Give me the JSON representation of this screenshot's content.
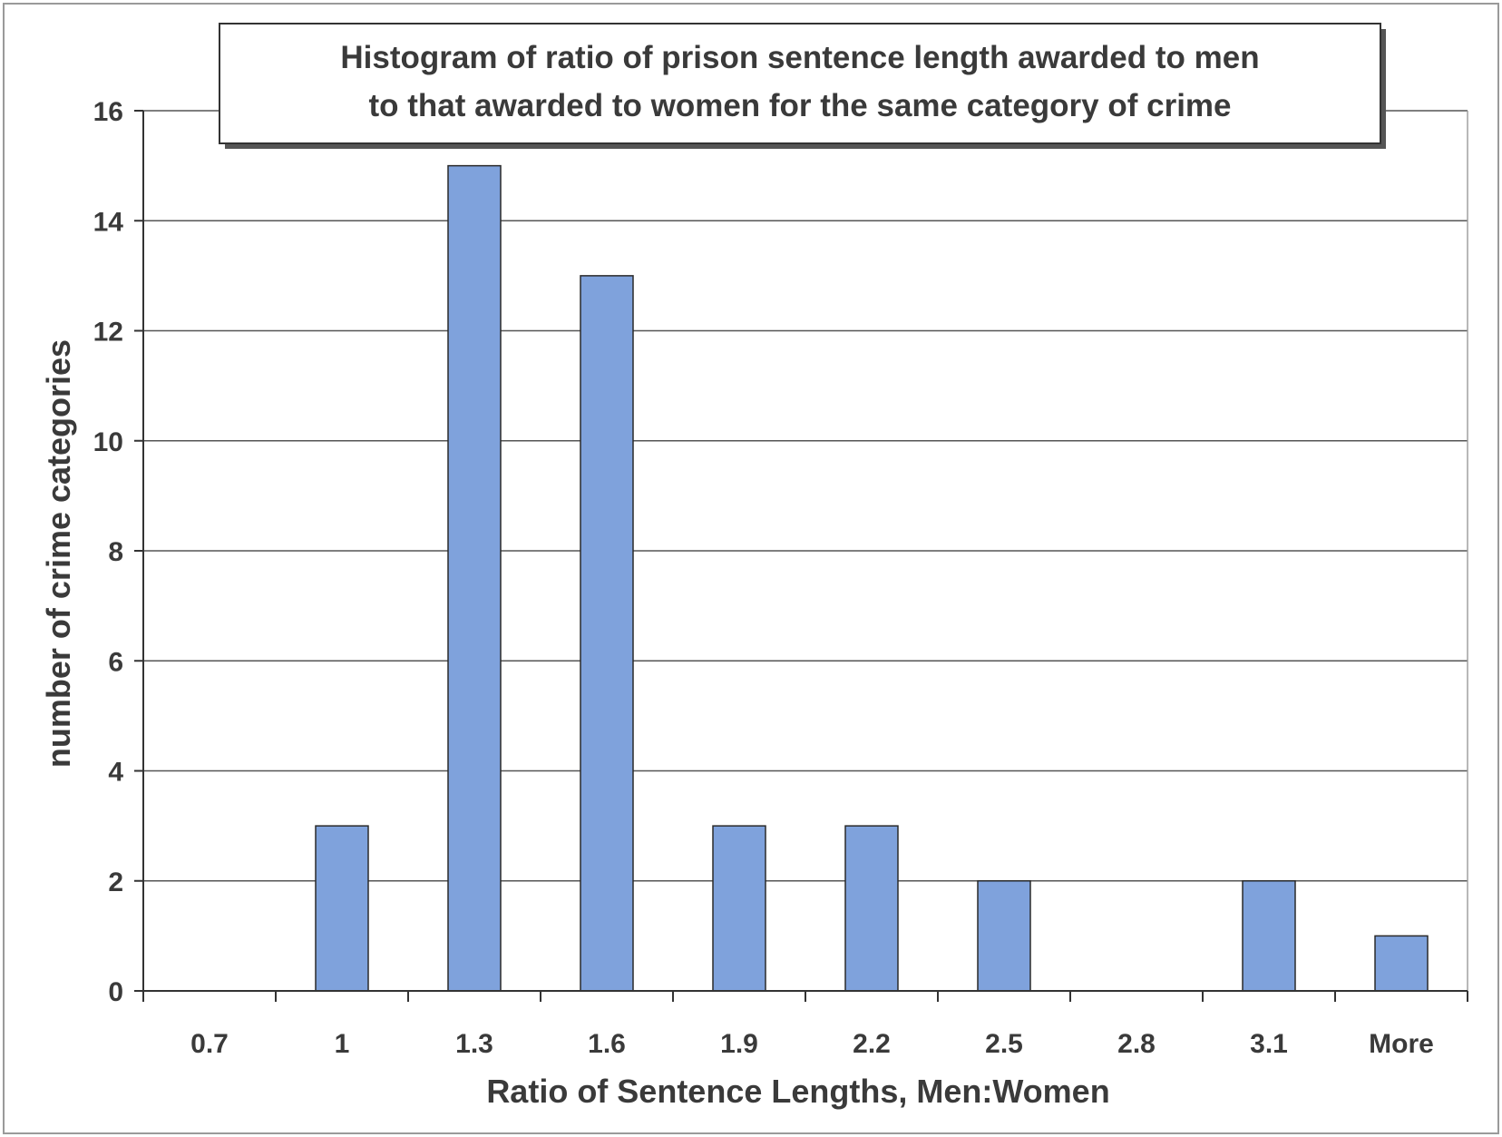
{
  "chart_data": {
    "type": "bar",
    "title_lines": [
      "Histogram of ratio of prison sentence length awarded to men",
      "to that awarded to women for the same category of crime"
    ],
    "xlabel": "Ratio of Sentence Lengths, Men:Women",
    "ylabel": "number of crime categories",
    "categories": [
      "0.7",
      "1",
      "1.3",
      "1.6",
      "1.9",
      "2.2",
      "2.5",
      "2.8",
      "3.1",
      "More"
    ],
    "values": [
      0,
      3,
      15,
      13,
      3,
      3,
      2,
      0,
      2,
      1
    ],
    "ylim": [
      0,
      16
    ],
    "yticks": [
      0,
      2,
      4,
      6,
      8,
      10,
      12,
      14,
      16
    ],
    "grid": true,
    "legend": "none",
    "colors": {
      "bar_fill": "#7fa2dc",
      "bar_stroke": "#2a2a2a",
      "grid": "#555555",
      "axis": "#333333",
      "text": "#3a3a3a"
    }
  }
}
